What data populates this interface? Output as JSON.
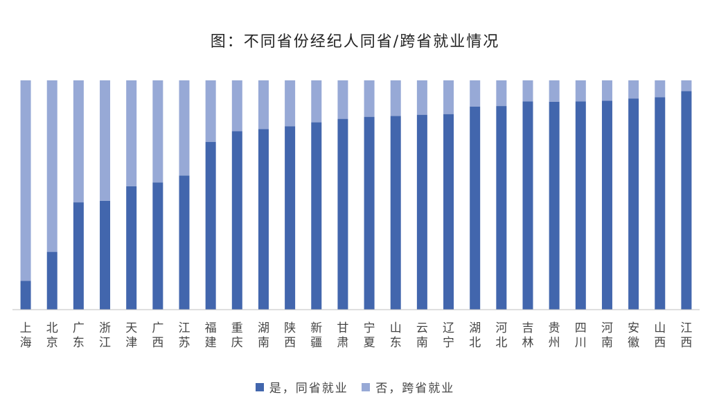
{
  "title": "图：不同省份经纪人同省/跨省就业情况",
  "colors": {
    "same": "#4266ad",
    "cross": "#97a9d6",
    "axis": "#bfbfbf",
    "label": "#444444"
  },
  "chart_data": {
    "type": "bar",
    "stacked": "percent",
    "categories": [
      "上海",
      "北京",
      "广东",
      "浙江",
      "天津",
      "广西",
      "江苏",
      "福建",
      "重庆",
      "湖南",
      "陕西",
      "新疆",
      "甘肃",
      "宁夏",
      "山东",
      "云南",
      "辽宁",
      "湖北",
      "河北",
      "吉林",
      "贵州",
      "四川",
      "河南",
      "安徽",
      "山西",
      "江西"
    ],
    "series": [
      {
        "name": "是，同省就业",
        "values": [
          12.6,
          25.2,
          46.8,
          47.5,
          53.8,
          55.5,
          58.5,
          73.2,
          77.8,
          78.7,
          80.0,
          81.7,
          83.2,
          84.1,
          84.5,
          85.0,
          85.3,
          88.6,
          88.8,
          90.8,
          90.7,
          90.8,
          91.1,
          92.1,
          92.6,
          95.3
        ]
      },
      {
        "name": "否，跨省就业",
        "values": [
          87.4,
          74.8,
          53.2,
          52.5,
          46.2,
          44.5,
          41.5,
          26.8,
          22.2,
          21.3,
          20.0,
          18.3,
          16.8,
          15.9,
          15.5,
          15.0,
          14.7,
          11.4,
          11.2,
          9.2,
          9.3,
          9.2,
          8.9,
          7.9,
          7.4,
          4.7
        ]
      }
    ],
    "ylim": [
      0,
      100
    ],
    "legend": "bottom",
    "grid": false
  }
}
